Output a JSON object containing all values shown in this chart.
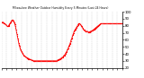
{
  "title": "Milwaukee Weather Outdoor Humidity Every 5 Minutes (Last 24 Hours)",
  "line_color": "#ff0000",
  "background_color": "#ffffff",
  "grid_color": "#bbbbbb",
  "ylim": [
    20,
    100
  ],
  "ytick_values": [
    20,
    30,
    40,
    50,
    60,
    70,
    80,
    90,
    100
  ],
  "ytick_labels": [
    "20",
    "30",
    "40",
    "50",
    "60",
    "70",
    "80",
    "90",
    "100"
  ],
  "humidity_values": [
    85,
    85,
    85,
    85,
    85,
    84,
    84,
    83,
    83,
    82,
    82,
    81,
    81,
    80,
    79,
    79,
    79,
    80,
    81,
    82,
    83,
    84,
    85,
    86,
    87,
    88,
    88,
    88,
    87,
    86,
    85,
    84,
    82,
    80,
    77,
    74,
    71,
    68,
    65,
    62,
    59,
    56,
    53,
    51,
    49,
    47,
    45,
    44,
    43,
    42,
    41,
    40,
    39,
    38,
    37,
    37,
    36,
    36,
    35,
    35,
    35,
    34,
    34,
    34,
    33,
    33,
    33,
    32,
    32,
    32,
    32,
    31,
    31,
    31,
    31,
    30,
    30,
    30,
    30,
    30,
    30,
    30,
    30,
    30,
    30,
    30,
    30,
    30,
    30,
    30,
    30,
    30,
    30,
    30,
    30,
    30,
    30,
    30,
    30,
    30,
    30,
    30,
    30,
    30,
    30,
    30,
    30,
    30,
    30,
    30,
    30,
    30,
    30,
    30,
    30,
    30,
    30,
    30,
    30,
    30,
    30,
    30,
    30,
    30,
    30,
    30,
    30,
    30,
    30,
    30,
    30,
    30,
    30,
    31,
    31,
    31,
    32,
    32,
    32,
    32,
    33,
    33,
    34,
    34,
    35,
    35,
    35,
    36,
    37,
    38,
    38,
    39,
    40,
    41,
    42,
    43,
    44,
    46,
    47,
    48,
    50,
    51,
    53,
    54,
    56,
    58,
    60,
    62,
    63,
    65,
    67,
    68,
    70,
    72,
    73,
    74,
    75,
    76,
    77,
    78,
    79,
    80,
    81,
    82,
    83,
    83,
    83,
    82,
    82,
    81,
    80,
    79,
    78,
    77,
    76,
    75,
    74,
    74,
    73,
    73,
    72,
    72,
    72,
    72,
    72,
    72,
    71,
    71,
    71,
    71,
    71,
    72,
    72,
    72,
    72,
    73,
    73,
    73,
    74,
    74,
    75,
    75,
    76,
    76,
    77,
    77,
    78,
    78,
    79,
    79,
    80,
    80,
    81,
    81,
    82,
    82,
    83,
    83,
    83,
    83,
    83,
    83,
    83,
    83,
    83,
    83,
    83,
    83,
    83,
    83,
    83,
    83,
    83,
    83,
    83,
    83,
    83,
    83,
    83,
    83,
    83,
    83,
    83,
    83,
    83,
    83,
    83,
    83,
    83,
    83,
    83,
    83,
    83,
    83,
    83,
    83,
    83,
    83,
    83,
    83,
    83,
    83,
    83,
    83,
    83,
    83,
    83,
    83,
    83
  ],
  "num_vgrid": 24,
  "figsize": [
    1.6,
    0.87
  ],
  "dpi": 100
}
